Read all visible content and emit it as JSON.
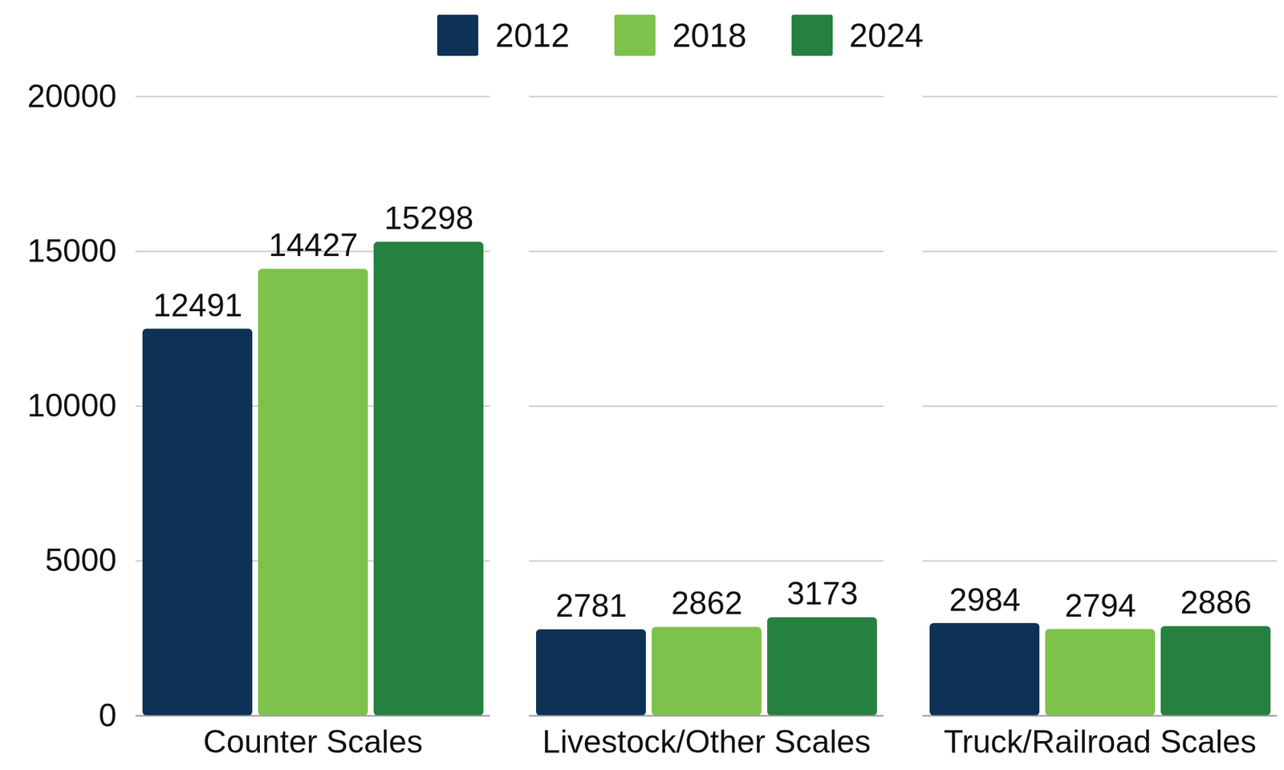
{
  "chart_data": {
    "type": "bar",
    "categories": [
      "Counter Scales",
      "Livestock/Other Scales",
      "Truck/Railroad Scales"
    ],
    "series": [
      {
        "name": "2012",
        "color": "#0d3256",
        "values": [
          12491,
          2781,
          2984
        ]
      },
      {
        "name": "2018",
        "color": "#7dc24b",
        "values": [
          14427,
          2862,
          2794
        ]
      },
      {
        "name": "2024",
        "color": "#268141",
        "values": [
          15298,
          3173,
          2886
        ]
      }
    ],
    "ylim": [
      0,
      20000
    ],
    "yticks": [
      0,
      5000,
      10000,
      15000,
      20000
    ],
    "grid": true,
    "legend": "top",
    "data_labels": true
  }
}
